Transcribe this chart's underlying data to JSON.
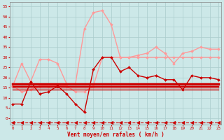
{
  "background_color": "#cce8e8",
  "grid_color": "#aacccc",
  "xlabel": "Vent moyen/en rafales ( km/h )",
  "x_ticks": [
    0,
    1,
    2,
    3,
    4,
    5,
    6,
    7,
    8,
    9,
    10,
    11,
    12,
    13,
    14,
    15,
    16,
    17,
    18,
    19,
    20,
    21,
    22,
    23
  ],
  "y_ticks": [
    0,
    5,
    10,
    15,
    20,
    25,
    30,
    35,
    40,
    45,
    50,
    55
  ],
  "ylim": [
    -3,
    57
  ],
  "xlim": [
    -0.3,
    23.3
  ],
  "series": [
    {
      "name": "rafales_light",
      "color": "#ff9999",
      "lw": 1.0,
      "marker": "D",
      "ms": 2.0,
      "x": [
        0,
        1,
        2,
        3,
        4,
        5,
        6,
        7,
        8,
        9,
        10,
        11,
        12,
        13,
        14,
        15,
        16,
        17,
        18,
        19,
        20,
        21,
        22,
        23
      ],
      "y": [
        16,
        27,
        18,
        29,
        29,
        27,
        17,
        17,
        44,
        52,
        53,
        46,
        30,
        30,
        31,
        32,
        35,
        32,
        27,
        32,
        33,
        35,
        34,
        34
      ]
    },
    {
      "name": "mean_light_flat",
      "color": "#ff9999",
      "lw": 1.0,
      "marker": "D",
      "ms": 2.0,
      "x": [
        0,
        1,
        2,
        3,
        4,
        5,
        6,
        7,
        8,
        9,
        10,
        11,
        12,
        13,
        14,
        15,
        16,
        17,
        18,
        19,
        20,
        21,
        22,
        23
      ],
      "y": [
        16,
        13,
        14,
        16,
        16,
        16,
        16,
        13,
        13,
        16,
        30,
        30,
        30,
        30,
        30,
        30,
        30,
        30,
        30,
        30,
        30,
        30,
        30,
        30
      ]
    },
    {
      "name": "wind_dark_vary",
      "color": "#cc0000",
      "lw": 1.0,
      "marker": "D",
      "ms": 2.0,
      "x": [
        0,
        1,
        2,
        3,
        4,
        5,
        6,
        7,
        8,
        9,
        10,
        11,
        12,
        13,
        14,
        15,
        16,
        17,
        18,
        19,
        20,
        21,
        22,
        23
      ],
      "y": [
        7,
        7,
        18,
        12,
        13,
        16,
        12,
        7,
        3,
        24,
        30,
        30,
        23,
        25,
        21,
        20,
        21,
        19,
        19,
        14,
        21,
        20,
        20,
        19
      ]
    },
    {
      "name": "flat_dark_thick",
      "color": "#cc0000",
      "lw": 2.5,
      "marker": null,
      "ms": 0,
      "x": [
        0,
        23
      ],
      "y": [
        17,
        17
      ]
    },
    {
      "name": "flat_dark_thin1",
      "color": "#cc0000",
      "lw": 1.0,
      "marker": null,
      "ms": 0,
      "x": [
        0,
        23
      ],
      "y": [
        16,
        16
      ]
    },
    {
      "name": "flat_dark_thin2",
      "color": "#cc0000",
      "lw": 1.0,
      "marker": null,
      "ms": 0,
      "x": [
        0,
        23
      ],
      "y": [
        15,
        15
      ]
    },
    {
      "name": "flat_dark_thin3",
      "color": "#cc0000",
      "lw": 1.0,
      "marker": null,
      "ms": 0,
      "x": [
        0,
        23
      ],
      "y": [
        14,
        14
      ]
    },
    {
      "name": "bottom_dashed_arrows",
      "color": "#cc0000",
      "lw": 0.8,
      "linestyle": "--",
      "marker": "<",
      "ms": 3.5,
      "x": [
        0,
        1,
        2,
        3,
        4,
        5,
        6,
        7,
        8,
        9,
        10,
        11,
        12,
        13,
        14,
        15,
        16,
        17,
        18,
        19,
        20,
        21,
        22,
        23
      ],
      "y": [
        -2,
        -2,
        -2,
        -2,
        -2,
        -2,
        -2,
        -2,
        -2,
        -2,
        -2,
        -2,
        -2,
        -2,
        -2,
        -2,
        -2,
        -2,
        -2,
        -2,
        -2,
        -2,
        -2,
        -2
      ]
    }
  ]
}
